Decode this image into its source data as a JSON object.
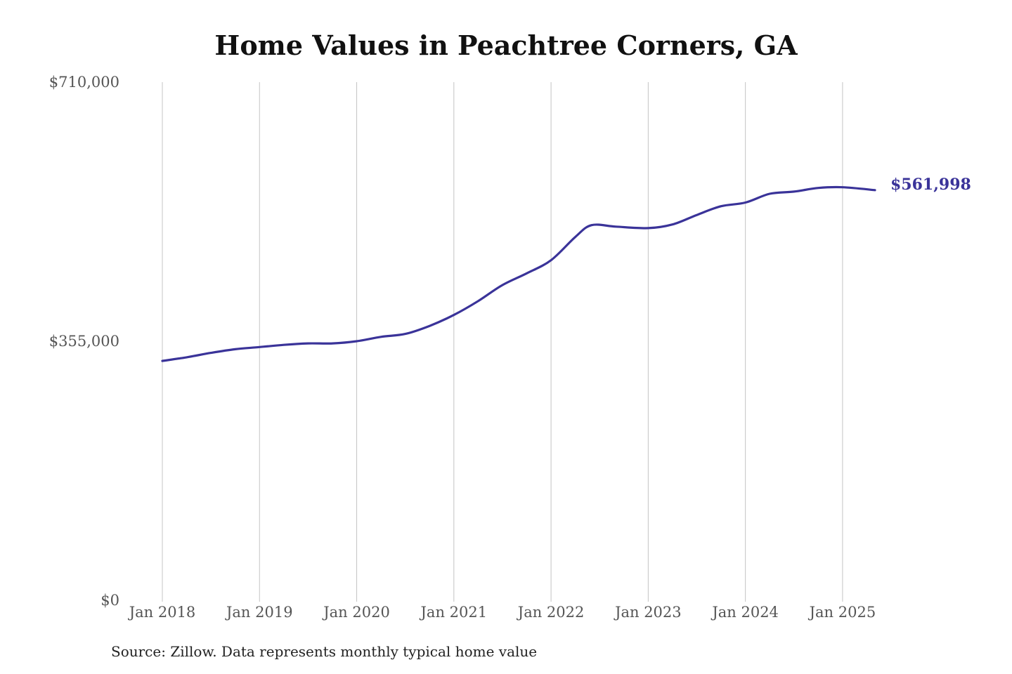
{
  "chart_data": {
    "type": "line",
    "title": "Home Values in Peachtree Corners, GA",
    "xlabel": "",
    "ylabel": "",
    "x_ticks": [
      "Jan 2018",
      "Jan 2019",
      "Jan 2020",
      "Jan 2021",
      "Jan 2022",
      "Jan 2023",
      "Jan 2024",
      "Jan 2025"
    ],
    "y_ticks": [
      {
        "value": 710000,
        "label": "$710,000"
      },
      {
        "value": 355000,
        "label": "$355,000"
      },
      {
        "value": 0,
        "label": "$0"
      }
    ],
    "ylim": [
      0,
      710000
    ],
    "xlim": [
      "2018-01",
      "2025-05"
    ],
    "grid": {
      "vertical": true,
      "horizontal": false
    },
    "series": [
      {
        "name": "",
        "color": "#3a3399",
        "end_label": "$561,998",
        "points": [
          {
            "x": "2018-01",
            "y": 328000
          },
          {
            "x": "2018-04",
            "y": 333000
          },
          {
            "x": "2018-07",
            "y": 339000
          },
          {
            "x": "2018-10",
            "y": 344000
          },
          {
            "x": "2019-01",
            "y": 347000
          },
          {
            "x": "2019-04",
            "y": 350000
          },
          {
            "x": "2019-07",
            "y": 352000
          },
          {
            "x": "2019-10",
            "y": 352000
          },
          {
            "x": "2020-01",
            "y": 355000
          },
          {
            "x": "2020-04",
            "y": 361000
          },
          {
            "x": "2020-07",
            "y": 365000
          },
          {
            "x": "2020-10",
            "y": 376000
          },
          {
            "x": "2021-01",
            "y": 391000
          },
          {
            "x": "2021-04",
            "y": 410000
          },
          {
            "x": "2021-07",
            "y": 432000
          },
          {
            "x": "2021-10",
            "y": 448000
          },
          {
            "x": "2022-01",
            "y": 466000
          },
          {
            "x": "2022-04",
            "y": 498000
          },
          {
            "x": "2022-06",
            "y": 514000
          },
          {
            "x": "2022-09",
            "y": 512000
          },
          {
            "x": "2023-01",
            "y": 510000
          },
          {
            "x": "2023-04",
            "y": 515000
          },
          {
            "x": "2023-07",
            "y": 528000
          },
          {
            "x": "2023-10",
            "y": 540000
          },
          {
            "x": "2024-01",
            "y": 545000
          },
          {
            "x": "2024-04",
            "y": 557000
          },
          {
            "x": "2024-07",
            "y": 560000
          },
          {
            "x": "2024-10",
            "y": 565000
          },
          {
            "x": "2025-01",
            "y": 566000
          },
          {
            "x": "2025-05",
            "y": 562000
          }
        ]
      }
    ]
  },
  "source_note": "Source: Zillow. Data represents monthly typical home value"
}
